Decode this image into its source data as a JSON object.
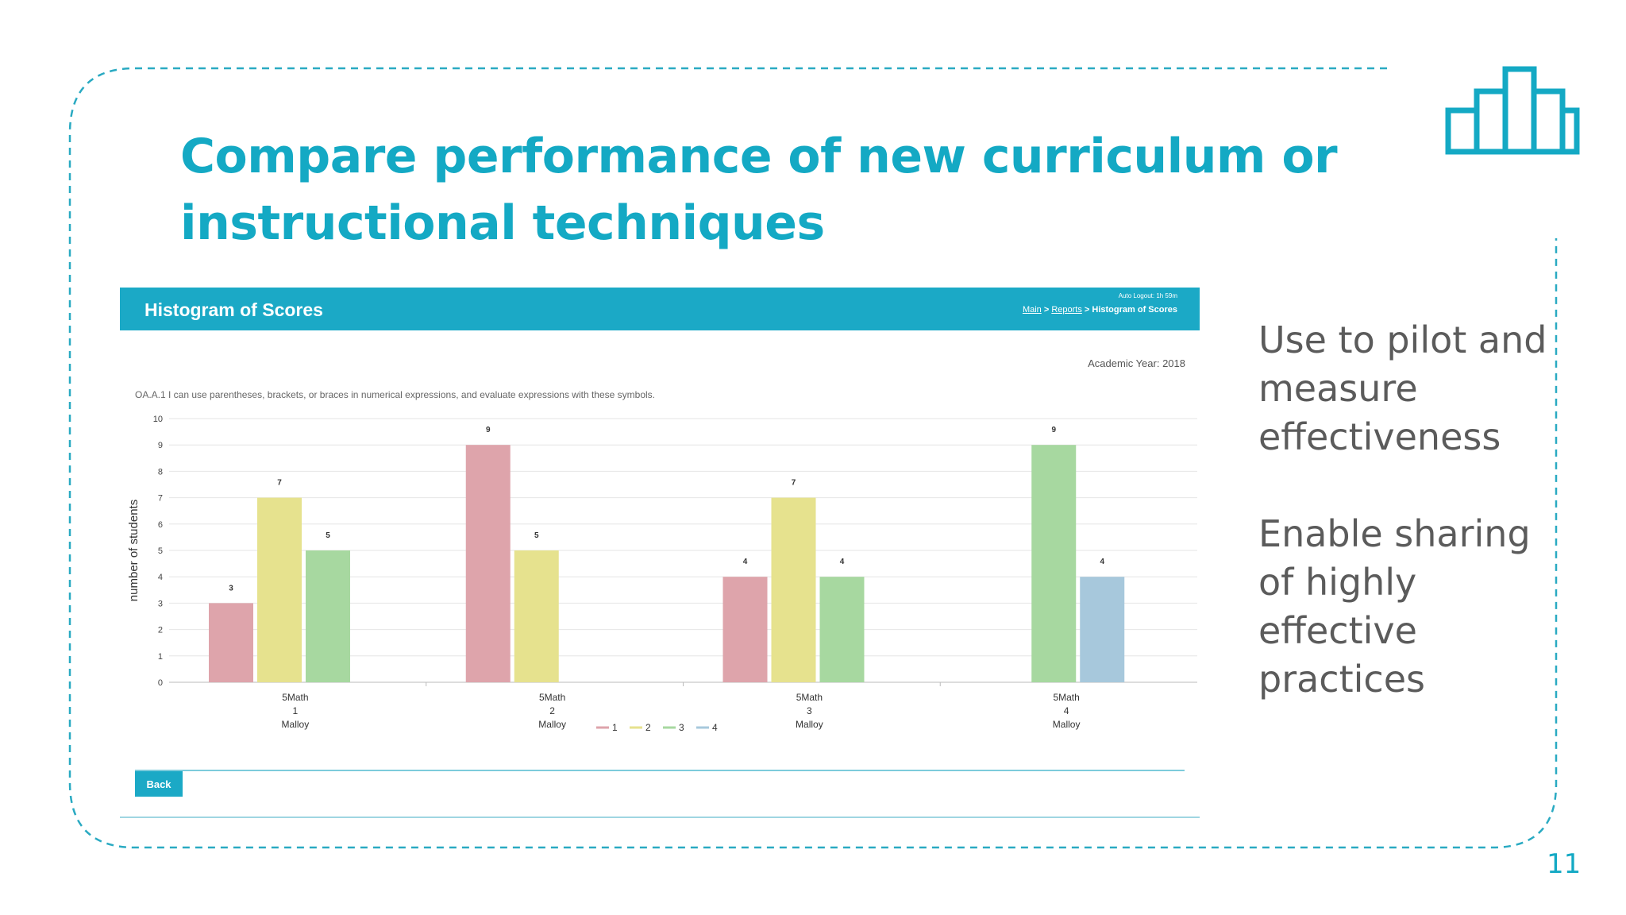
{
  "slide": {
    "title_line1": "Compare performance of new curriculum or",
    "title_line2": "instructional techniques",
    "bullets": [
      "Use to pilot and measure effectiveness",
      "Enable sharing of highly effective practices"
    ],
    "page_number": "11",
    "accent_color": "#14a9c4",
    "icon": "bar-chart-icon"
  },
  "screenshot": {
    "header_title": "Histogram of Scores",
    "auto_logout": "Auto Logout: 1h 59m",
    "breadcrumb": {
      "main": "Main",
      "reports": "Reports",
      "current": "Histogram of Scores"
    },
    "academic_year": "Academic Year: 2018",
    "question": "OA.A.1 I can use parentheses, brackets, or braces in numerical expressions, and evaluate expressions with these symbols.",
    "back_label": "Back"
  },
  "chart_data": {
    "type": "bar",
    "ylabel": "number of students",
    "ylim": [
      0,
      10
    ],
    "yticks": [
      0,
      1,
      2,
      3,
      4,
      5,
      6,
      7,
      8,
      9,
      10
    ],
    "categories": [
      [
        "5Math",
        "1",
        "Malloy"
      ],
      [
        "5Math",
        "2",
        "Malloy"
      ],
      [
        "5Math",
        "3",
        "Malloy"
      ],
      [
        "5Math",
        "4",
        "Malloy"
      ]
    ],
    "series": [
      {
        "name": "1",
        "color": "#dea4ab",
        "values": [
          3,
          9,
          4,
          null
        ]
      },
      {
        "name": "2",
        "color": "#e6e28e",
        "values": [
          7,
          5,
          7,
          null
        ]
      },
      {
        "name": "3",
        "color": "#a7d8a0",
        "values": [
          5,
          null,
          4,
          9
        ]
      },
      {
        "name": "4",
        "color": "#a7c8dc",
        "values": [
          null,
          null,
          null,
          4
        ]
      }
    ],
    "legend_position": "bottom",
    "grid": true
  }
}
